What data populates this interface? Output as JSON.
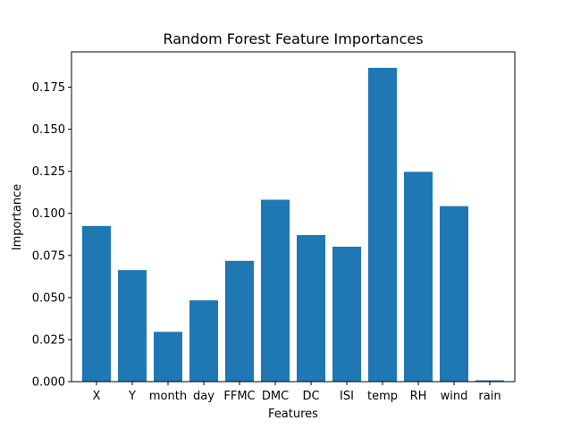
{
  "chart_data": {
    "type": "bar",
    "title": "Random Forest Feature Importances",
    "xlabel": "Features",
    "ylabel": "Importance",
    "categories": [
      "X",
      "Y",
      "month",
      "day",
      "FFMC",
      "DMC",
      "DC",
      "ISI",
      "temp",
      "RH",
      "wind",
      "rain"
    ],
    "values": [
      0.0925,
      0.0663,
      0.0296,
      0.0483,
      0.0718,
      0.1081,
      0.0871,
      0.0802,
      0.1865,
      0.1247,
      0.1043,
      0.0008
    ],
    "yticks": [
      "0.000",
      "0.025",
      "0.050",
      "0.075",
      "0.100",
      "0.125",
      "0.150",
      "0.175"
    ],
    "ylim": [
      0,
      0.196
    ],
    "grid": false,
    "legend": "none",
    "bar_color": "#1f77b4"
  }
}
